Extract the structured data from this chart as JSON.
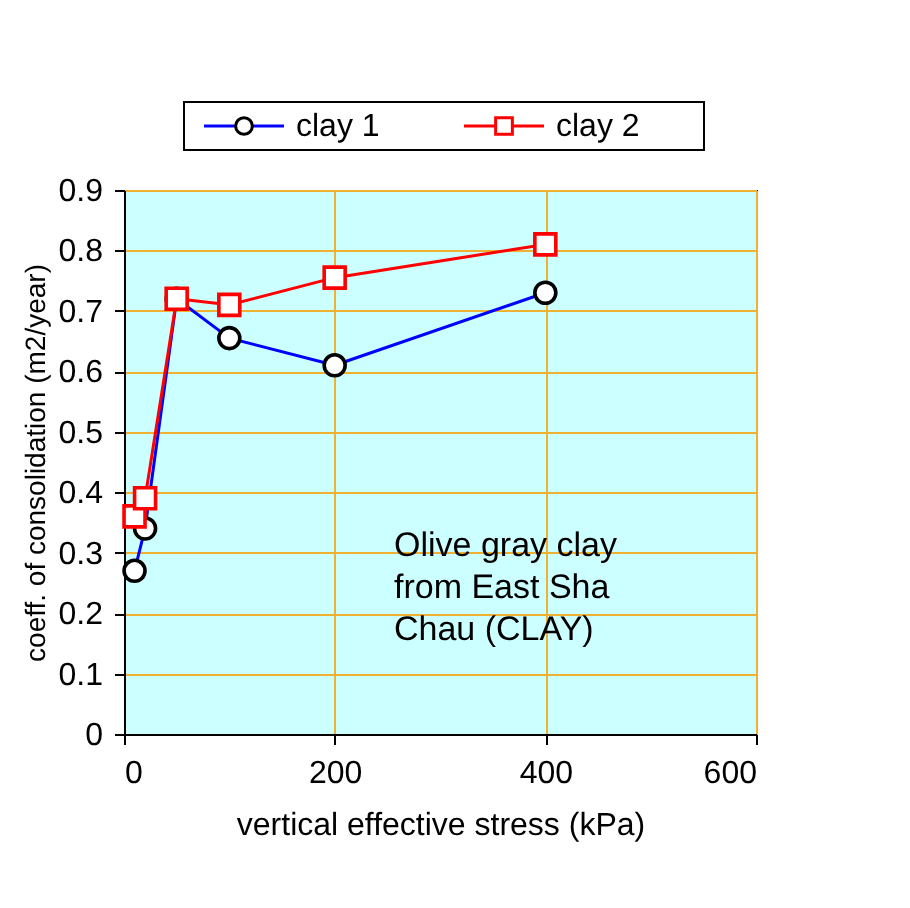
{
  "chart_data": {
    "type": "line",
    "xlabel": "vertical effective stress (kPa)",
    "ylabel": "coeff. of consolidation (m2/year)",
    "xlim": [
      0,
      600
    ],
    "xticks": [
      0,
      200,
      400,
      600
    ],
    "ylim": [
      0,
      0.9
    ],
    "yticks": [
      0,
      0.1,
      0.2,
      0.3,
      0.4,
      0.5,
      0.6,
      0.7,
      0.8,
      0.9
    ],
    "grid": true,
    "legend": "top",
    "annotations": [
      "Olive gray clay from East Sha Chau (CLAY)"
    ],
    "series": [
      {
        "name": "clay 1",
        "color": "#0000ff",
        "marker": "circle",
        "x": [
          10,
          20,
          50,
          100,
          200,
          400
        ],
        "values": [
          0.27,
          0.34,
          0.72,
          0.655,
          0.61,
          0.73
        ]
      },
      {
        "name": "clay 2",
        "color": "#ff0000",
        "marker": "square",
        "x": [
          10,
          20,
          50,
          100,
          200,
          400
        ],
        "values": [
          0.36,
          0.39,
          0.72,
          0.71,
          0.755,
          0.81
        ]
      }
    ]
  }
}
